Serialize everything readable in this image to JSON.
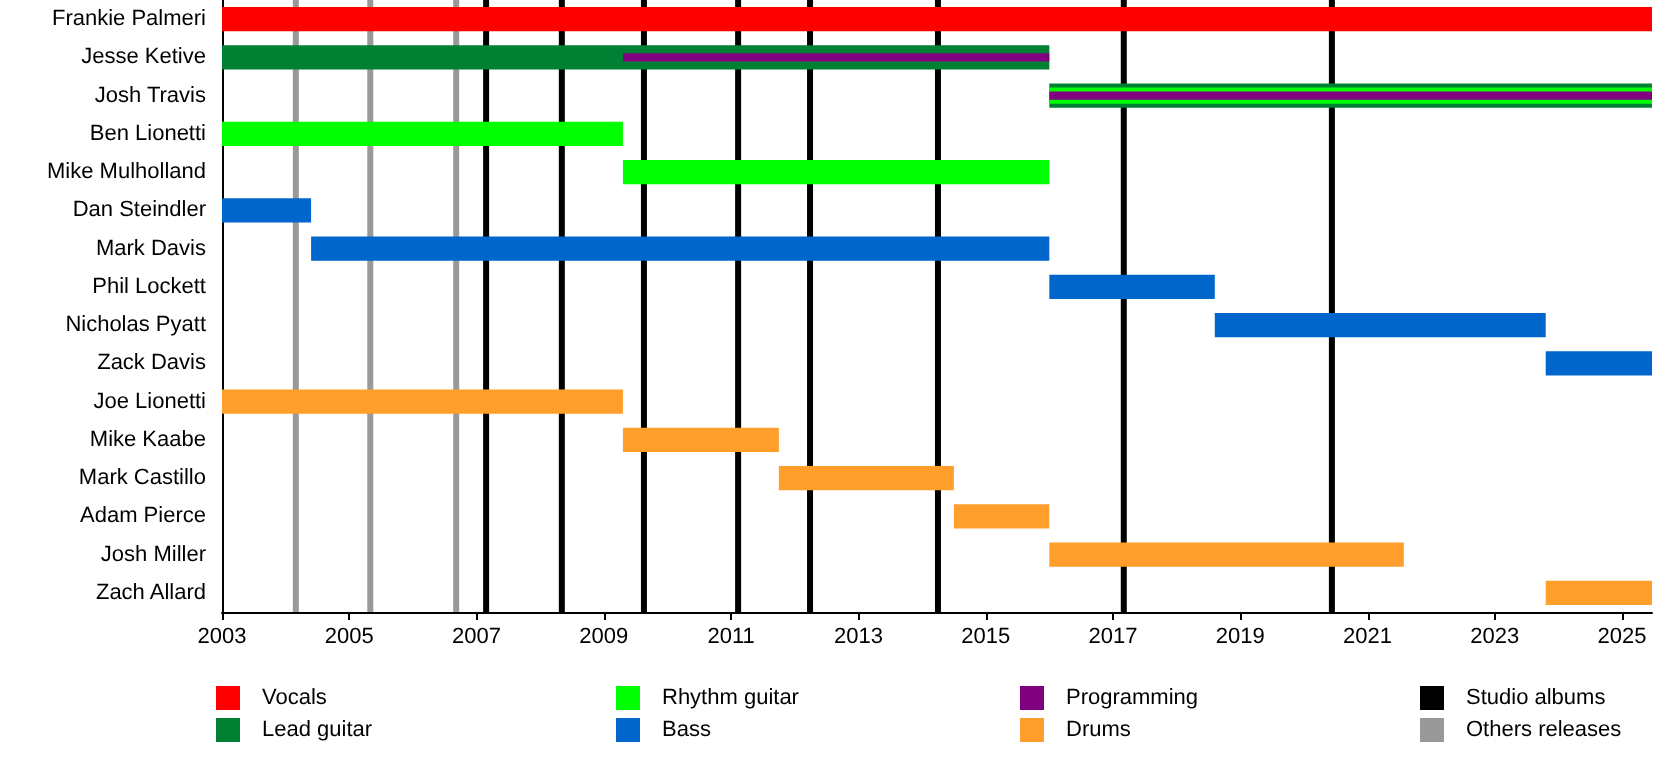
{
  "chart_data": {
    "type": "bar",
    "orientation": "horizontal",
    "legend": "bottom",
    "grid": false,
    "categories": [
      "Frankie Palmeri",
      "Jesse Ketive",
      "Josh Travis",
      "Ben Lionetti",
      "Mike Mulholland",
      "Dan Steindler",
      "Mark Davis",
      "Phil Lockett",
      "Nicholas Pyatt",
      "Zack Davis",
      "Joe Lionetti",
      "Mike Kaabe",
      "Mark Castillo",
      "Adam Pierce",
      "Josh Miller",
      "Zach Allard"
    ],
    "series": [
      {
        "name": "Vocals",
        "color": "#ff0000",
        "base": [
          2003,
          null,
          null,
          null,
          null,
          null,
          null,
          null,
          null,
          null,
          null,
          null,
          null,
          null,
          null,
          null
        ],
        "values": [
          22.47,
          null,
          null,
          null,
          null,
          null,
          null,
          null,
          null,
          null,
          null,
          null,
          null,
          null,
          null,
          null
        ]
      },
      {
        "name": "Lead guitar",
        "color": "#008033",
        "base": [
          null,
          2003,
          2016.0,
          null,
          null,
          null,
          null,
          null,
          null,
          null,
          null,
          null,
          null,
          null,
          null,
          null
        ],
        "values": [
          null,
          13.0,
          9.47,
          null,
          null,
          null,
          null,
          null,
          null,
          null,
          null,
          null,
          null,
          null,
          null,
          null
        ]
      },
      {
        "name": "Rhythm guitar",
        "color": "#00ff00",
        "base": [
          null,
          null,
          2016.0,
          2003,
          2009.3,
          null,
          null,
          null,
          null,
          null,
          null,
          null,
          null,
          null,
          null,
          null
        ],
        "values": [
          null,
          null,
          9.47,
          6.3,
          6.7,
          null,
          null,
          null,
          null,
          null,
          null,
          null,
          null,
          null,
          null,
          null
        ]
      },
      {
        "name": "Bass",
        "color": "#0066cc",
        "base": [
          null,
          null,
          null,
          null,
          null,
          2003,
          2004.4,
          2016.0,
          2018.6,
          2023.8,
          null,
          null,
          null,
          null,
          null,
          null
        ],
        "values": [
          null,
          null,
          null,
          null,
          null,
          1.4,
          11.6,
          2.6,
          5.2,
          1.67,
          null,
          null,
          null,
          null,
          null,
          null
        ]
      },
      {
        "name": "Programming",
        "color": "#800080",
        "base": [
          null,
          2009.3,
          2016.0,
          null,
          null,
          null,
          null,
          null,
          null,
          null,
          null,
          null,
          null,
          null,
          null,
          null
        ],
        "values": [
          null,
          6.7,
          9.47,
          null,
          null,
          null,
          null,
          null,
          null,
          null,
          null,
          null,
          null,
          null,
          null,
          null
        ]
      },
      {
        "name": "Drums",
        "color": "#ff9e2a",
        "base": [
          null,
          null,
          null,
          null,
          null,
          null,
          null,
          null,
          null,
          null,
          2003,
          2009.3,
          2011.75,
          2014.5,
          2016.0,
          2023.8
        ],
        "values": [
          null,
          null,
          null,
          null,
          null,
          null,
          null,
          null,
          null,
          null,
          6.3,
          2.45,
          2.75,
          1.5,
          5.57,
          1.67
        ]
      }
    ],
    "ref_lines": [
      {
        "axis": "x",
        "value": 2007.15,
        "label": "Studio albums",
        "color": "#000000"
      },
      {
        "axis": "x",
        "value": 2008.34,
        "color": "#000000"
      },
      {
        "axis": "x",
        "value": 2009.63,
        "color": "#000000"
      },
      {
        "axis": "x",
        "value": 2011.11,
        "color": "#000000"
      },
      {
        "axis": "x",
        "value": 2012.24,
        "color": "#000000"
      },
      {
        "axis": "x",
        "value": 2014.25,
        "color": "#000000"
      },
      {
        "axis": "x",
        "value": 2017.17,
        "color": "#000000"
      },
      {
        "axis": "x",
        "value": 2020.44,
        "color": "#000000"
      },
      {
        "axis": "x",
        "value": 2004.16,
        "label": "Others releases",
        "color": "#999999"
      },
      {
        "axis": "x",
        "value": 2005.33,
        "color": "#999999"
      },
      {
        "axis": "x",
        "value": 2006.68,
        "color": "#999999"
      }
    ],
    "xlim": [
      2003,
      2025.47
    ],
    "xticks": [
      2003,
      2005,
      2007,
      2009,
      2011,
      2013,
      2015,
      2017,
      2019,
      2021,
      2023,
      2025
    ]
  }
}
